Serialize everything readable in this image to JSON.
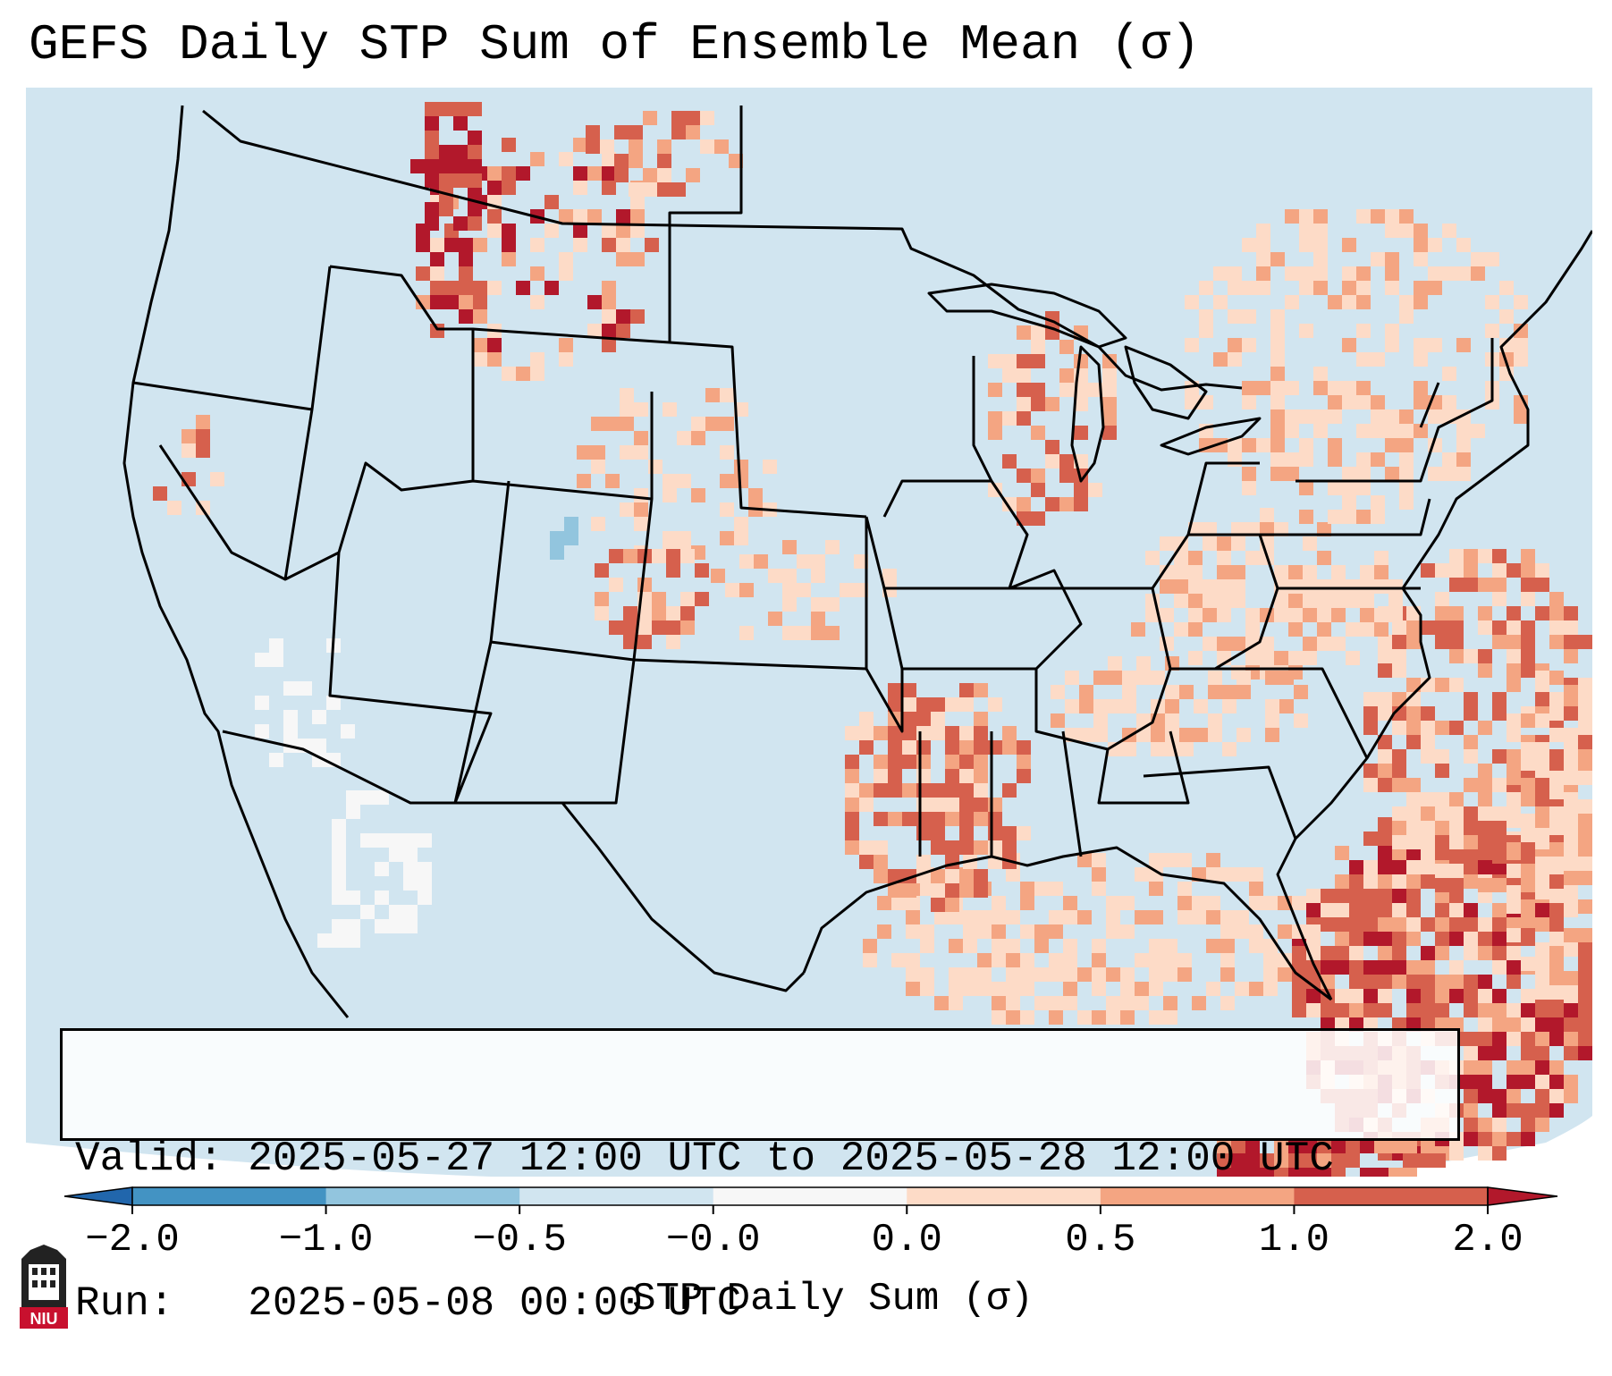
{
  "title": "GEFS Daily STP Sum of Ensemble Mean (σ)",
  "map": {
    "region": "Contiguous United States",
    "colors": {
      "ocean": "#d1e5f0",
      "land": "#d1e5f0",
      "border": "#000000",
      "extrapolation_edge": "#ffffff"
    }
  },
  "info_box": {
    "valid_line": "Valid: 2025-05-27 12:00 UTC to 2025-05-28 12:00 UTC",
    "run_line": "Run:   2025-05-08 00:00 UTC"
  },
  "colorbar": {
    "label": "STP Daily Sum (σ)",
    "ticks": [
      "−2.0",
      "−1.0",
      "−0.5",
      "−0.0",
      "0.0",
      "0.5",
      "1.0",
      "2.0"
    ],
    "bins": [
      {
        "range": "< -2.0",
        "color": "#2166ac"
      },
      {
        "range": "-2.0 to -1.0",
        "color": "#4393c3"
      },
      {
        "range": "-1.0 to -0.5",
        "color": "#92c5de"
      },
      {
        "range": "-0.5 to -0.0",
        "color": "#d1e5f0"
      },
      {
        "range": "-0.0 to 0.0",
        "color": "#f7f7f7"
      },
      {
        "range": "0.0 to 0.5",
        "color": "#fddbc7"
      },
      {
        "range": "0.5 to 1.0",
        "color": "#f4a582"
      },
      {
        "range": "1.0 to 2.0",
        "color": "#d6604d"
      },
      {
        "range": "> 2.0",
        "color": "#b2182b"
      }
    ]
  },
  "logo": {
    "text": "NIU",
    "icon": "niu-logo-icon"
  }
}
